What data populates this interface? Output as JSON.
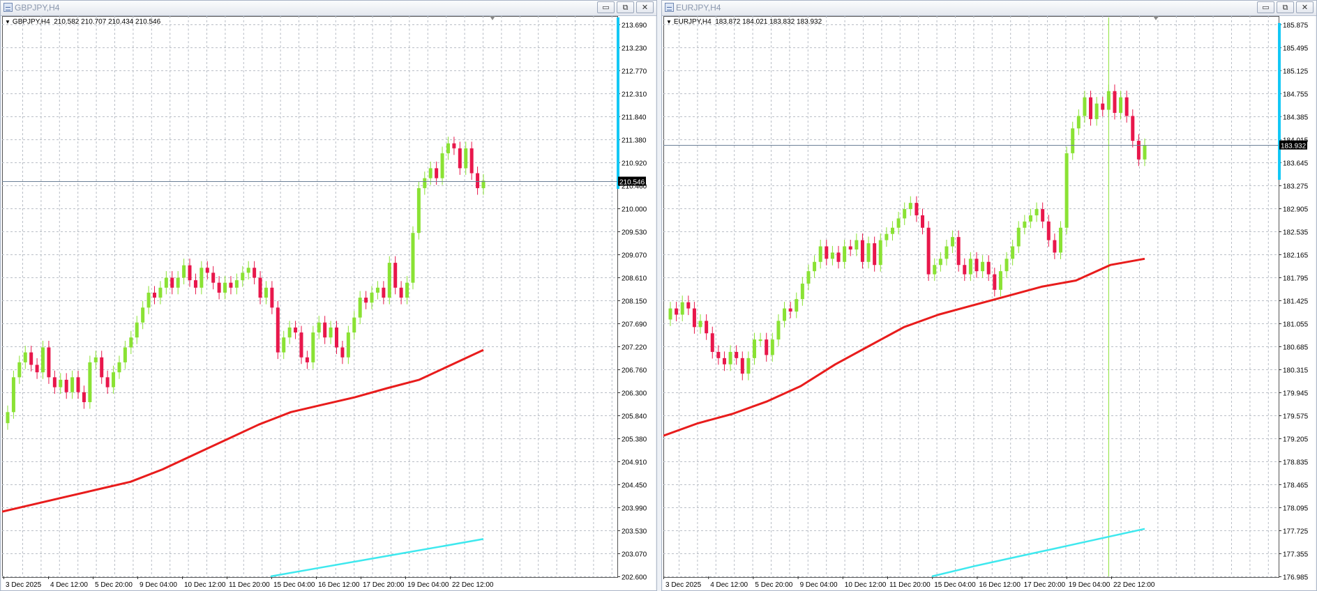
{
  "windows": [
    {
      "title": "GBPJPY,H4",
      "info": {
        "symbol": "GBPJPY,H4",
        "ohlc": "210.582 210.707 210.434 210.546"
      },
      "buttons": {
        "minimize": "▭",
        "restore": "⧉",
        "close": "✕"
      },
      "current_price": "210.546",
      "chart_data": {
        "type": "candlestick",
        "title": "",
        "y_ticks": [
          "213.690",
          "213.230",
          "212.770",
          "212.310",
          "211.840",
          "211.380",
          "210.920",
          "210.460",
          "210.000",
          "209.530",
          "209.070",
          "208.610",
          "208.150",
          "207.690",
          "207.220",
          "206.760",
          "206.300",
          "205.840",
          "205.380",
          "204.910",
          "204.450",
          "203.990",
          "203.530",
          "203.070",
          "202.600"
        ],
        "ylim": [
          202.6,
          213.69
        ],
        "x_ticks": [
          "3 Dec 2025",
          "4 Dec 12:00",
          "5 Dec 20:00",
          "9 Dec 04:00",
          "10 Dec 12:00",
          "11 Dec 20:00",
          "15 Dec 04:00",
          "16 Dec 12:00",
          "17 Dec 20:00",
          "19 Dec 04:00",
          "22 Dec 12:00"
        ],
        "closes": [
          205.9,
          206.6,
          206.9,
          207.1,
          206.85,
          206.7,
          207.2,
          206.6,
          206.4,
          206.55,
          206.3,
          206.6,
          206.3,
          206.1,
          206.9,
          207.0,
          206.6,
          206.4,
          206.7,
          206.9,
          207.2,
          207.4,
          207.7,
          208.0,
          208.3,
          208.2,
          208.4,
          208.6,
          208.4,
          208.6,
          208.85,
          208.55,
          208.4,
          208.8,
          208.7,
          208.5,
          208.3,
          208.5,
          208.4,
          208.55,
          208.7,
          208.8,
          208.6,
          208.2,
          208.4,
          208.0,
          207.1,
          207.4,
          207.6,
          207.5,
          207.0,
          206.9,
          207.5,
          207.7,
          207.4,
          207.6,
          207.2,
          207.0,
          207.5,
          207.8,
          208.2,
          208.1,
          208.3,
          208.4,
          208.2,
          208.9,
          208.4,
          208.2,
          208.5,
          209.5,
          210.4,
          210.6,
          210.8,
          210.6,
          211.1,
          211.3,
          211.2,
          210.8,
          211.2,
          210.7,
          210.4,
          210.55
        ],
        "series": [
          {
            "name": "",
            "color": "#e81c1c",
            "values": [
              203.9,
              204.05,
              204.2,
              204.35,
              204.5,
              204.75,
              205.05,
              205.35,
              205.65,
              205.9,
              206.05,
              206.2,
              206.38,
              206.55,
              206.85,
              207.15
            ]
          },
          {
            "name": "",
            "color": "#3ee8ee",
            "values": [
              202.6,
              202.75,
              202.9,
              203.05,
              203.2,
              203.35
            ]
          }
        ],
        "grid": true,
        "current_line": 210.546
      }
    },
    {
      "title": "EURJPY,H4",
      "info": {
        "symbol": "EURJPY,H4",
        "ohlc": "183.872 184.021 183.832 183.932"
      },
      "buttons": {
        "minimize": "▭",
        "restore": "⧉",
        "close": "✕"
      },
      "current_price": "183.932",
      "chart_data": {
        "type": "candlestick",
        "title": "",
        "y_ticks": [
          "185.875",
          "185.495",
          "185.125",
          "184.755",
          "184.385",
          "184.015",
          "183.645",
          "183.275",
          "182.905",
          "182.535",
          "182.165",
          "181.795",
          "181.425",
          "181.055",
          "180.685",
          "180.315",
          "179.945",
          "179.575",
          "179.205",
          "178.835",
          "178.465",
          "178.095",
          "177.725",
          "177.355",
          "176.985"
        ],
        "ylim": [
          176.985,
          185.875
        ],
        "x_ticks": [
          "3 Dec 2025",
          "4 Dec 12:00",
          "5 Dec 20:00",
          "9 Dec 04:00",
          "10 Dec 12:00",
          "11 Dec 20:00",
          "15 Dec 04:00",
          "16 Dec 12:00",
          "17 Dec 20:00",
          "19 Dec 04:00",
          "22 Dec 12:00"
        ],
        "closes": [
          181.3,
          181.2,
          181.4,
          181.3,
          181.0,
          181.1,
          180.9,
          180.6,
          180.5,
          180.4,
          180.6,
          180.5,
          180.25,
          180.5,
          180.8,
          180.8,
          180.55,
          180.8,
          181.1,
          181.3,
          181.25,
          181.45,
          181.7,
          181.9,
          182.05,
          182.3,
          182.1,
          182.2,
          182.05,
          182.3,
          182.25,
          182.4,
          182.05,
          182.35,
          182.0,
          182.4,
          182.5,
          182.6,
          182.75,
          182.9,
          183.0,
          182.8,
          182.6,
          181.85,
          182.0,
          182.1,
          182.3,
          182.45,
          182.0,
          181.85,
          182.1,
          181.9,
          182.05,
          181.85,
          181.6,
          181.9,
          182.1,
          182.3,
          182.6,
          182.7,
          182.8,
          182.9,
          182.7,
          182.4,
          182.2,
          182.6,
          183.8,
          184.2,
          184.4,
          184.7,
          184.35,
          184.6,
          184.5,
          184.8,
          184.45,
          184.7,
          184.4,
          184.0,
          183.7,
          183.93
        ],
        "series": [
          {
            "name": "",
            "color": "#e81c1c",
            "values": [
              179.25,
              179.45,
              179.6,
              179.8,
              180.05,
              180.4,
              180.7,
              181.0,
              181.2,
              181.35,
              181.5,
              181.65,
              181.75,
              182.0,
              182.1
            ]
          },
          {
            "name": "",
            "color": "#3ee8ee",
            "values": [
              176.985,
              177.15,
              177.3,
              177.45,
              177.6,
              177.75
            ]
          }
        ],
        "grid": true,
        "current_line": 183.932,
        "crosshair_x_index": 73
      }
    }
  ],
  "colors": {
    "bull": "#8ae234",
    "bear": "#e8174b",
    "grid": "#b9bec6",
    "volume_bar": "#13c8f5"
  }
}
